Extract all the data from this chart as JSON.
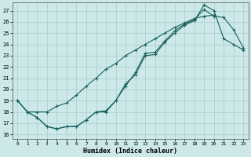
{
  "xlabel": "Humidex (Indice chaleur)",
  "bg_color": "#cce8e8",
  "grid_color": "#aacccc",
  "line_color": "#1a6060",
  "xlim": [
    -0.5,
    23.5
  ],
  "ylim": [
    15.6,
    27.7
  ],
  "xticks": [
    0,
    1,
    2,
    3,
    4,
    5,
    6,
    7,
    8,
    9,
    10,
    11,
    12,
    13,
    14,
    15,
    16,
    17,
    18,
    19,
    20,
    21,
    22,
    23
  ],
  "yticks": [
    16,
    17,
    18,
    19,
    20,
    21,
    22,
    23,
    24,
    25,
    26,
    27
  ],
  "line1_x": [
    0,
    1,
    2,
    3,
    4,
    5,
    6,
    7,
    8,
    9,
    10,
    11,
    12,
    13,
    14,
    15,
    16,
    17,
    18,
    19,
    20,
    21,
    22,
    23
  ],
  "line1_y": [
    19.0,
    18.0,
    17.5,
    16.7,
    16.5,
    16.7,
    16.7,
    17.3,
    18.0,
    18.0,
    19.0,
    20.5,
    21.3,
    23.0,
    23.1,
    24.2,
    25.0,
    25.7,
    26.1,
    27.5,
    27.0,
    24.5,
    24.0,
    23.5
  ],
  "line2_x": [
    0,
    1,
    2,
    3,
    4,
    5,
    6,
    7,
    8,
    9,
    10,
    11,
    12,
    13,
    14,
    15,
    16,
    17,
    18,
    19,
    20,
    21,
    22,
    23
  ],
  "line2_y": [
    19.0,
    18.0,
    17.5,
    16.7,
    16.5,
    16.7,
    16.7,
    17.3,
    18.0,
    18.1,
    19.0,
    20.3,
    21.5,
    23.2,
    23.3,
    24.3,
    25.2,
    25.8,
    26.2,
    27.1,
    26.5,
    26.4,
    25.3,
    23.7
  ],
  "line3_x": [
    0,
    1,
    2,
    3,
    4,
    5,
    6,
    7,
    8,
    9,
    10,
    11,
    12,
    13,
    14,
    15,
    16,
    17,
    18,
    19,
    20
  ],
  "line3_y": [
    19.0,
    18.0,
    18.0,
    18.0,
    18.5,
    18.8,
    19.5,
    20.3,
    21.0,
    21.8,
    22.3,
    23.0,
    23.5,
    24.0,
    24.5,
    25.0,
    25.5,
    25.9,
    26.3,
    26.5,
    26.6
  ]
}
